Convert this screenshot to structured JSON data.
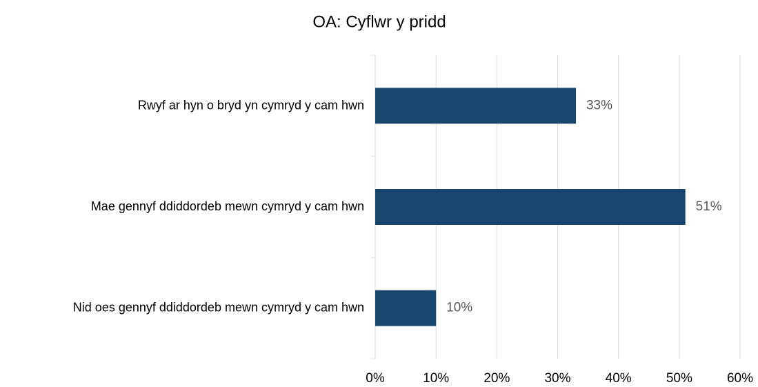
{
  "chart_data": {
    "type": "barh",
    "title": "OA: Cyflwr y pridd",
    "categories": [
      "Rwyf ar hyn o bryd yn cymryd y cam hwn",
      "Mae gennyf ddiddordeb mewn cymryd y cam hwn",
      "Nid oes gennyf ddiddordeb mewn cymryd y cam hwn"
    ],
    "values": [
      33,
      51,
      10
    ],
    "value_labels": [
      "33%",
      "51%",
      "10%"
    ],
    "color": "#17456c",
    "xlim": [
      0,
      60
    ],
    "xticks": [
      {
        "value": 0,
        "label": "0%"
      },
      {
        "value": 10,
        "label": "10%"
      },
      {
        "value": 20,
        "label": "20%"
      },
      {
        "value": 30,
        "label": "30%"
      },
      {
        "value": 40,
        "label": "40%"
      },
      {
        "value": 50,
        "label": "50%"
      },
      {
        "value": 60,
        "label": "60%"
      }
    ],
    "grid": true
  }
}
